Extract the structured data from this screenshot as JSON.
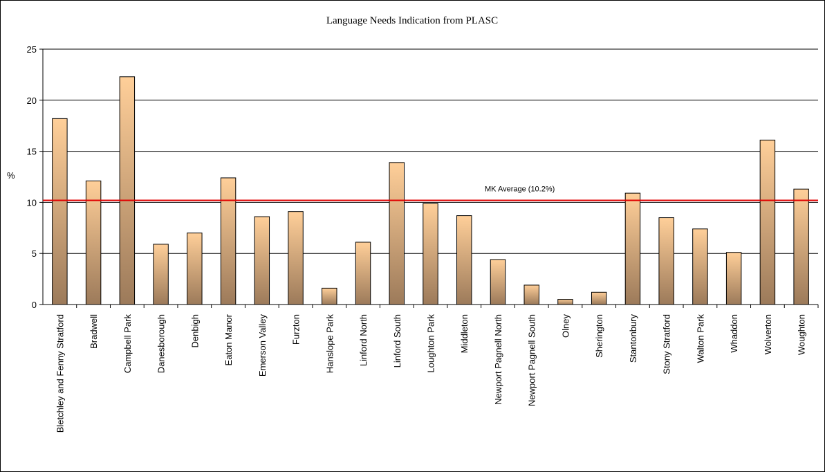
{
  "chart_data": {
    "type": "bar",
    "title": "Language Needs Indication from PLASC",
    "ylabel": "%",
    "xlabel": "",
    "ylim": [
      0,
      25
    ],
    "yticks": [
      0,
      5,
      10,
      15,
      20,
      25
    ],
    "grid": true,
    "categories": [
      "Bletchley and Fenny Stratford",
      "Bradwell",
      "Campbell Park",
      "Danesborough",
      "Denbigh",
      "Eaton Manor",
      "Emerson Valley",
      "Furzton",
      "Hanslope Park",
      "Linford North",
      "Linford South",
      "Loughton Park",
      "Middleton",
      "Newport Pagnell North",
      "Newport Pagnell South",
      "Olney",
      "Sherington",
      "Stantonbury",
      "Stony Stratford",
      "Walton Park",
      "Whaddon",
      "Wolverton",
      "Woughton"
    ],
    "values": [
      18.2,
      12.1,
      22.3,
      5.9,
      7.0,
      12.4,
      8.6,
      9.1,
      1.6,
      6.1,
      13.9,
      9.9,
      8.7,
      4.4,
      1.9,
      0.5,
      1.2,
      10.9,
      8.5,
      7.4,
      5.1,
      16.1,
      11.3
    ],
    "reference_line": {
      "value": 10.2,
      "label": "MK Average (10.2%)",
      "color": "#e00000"
    },
    "colors": {
      "bar_top": "#ffcf99",
      "bar_bottom": "#9c7a5a",
      "bar_stroke": "#000000",
      "grid": "#000000"
    }
  }
}
